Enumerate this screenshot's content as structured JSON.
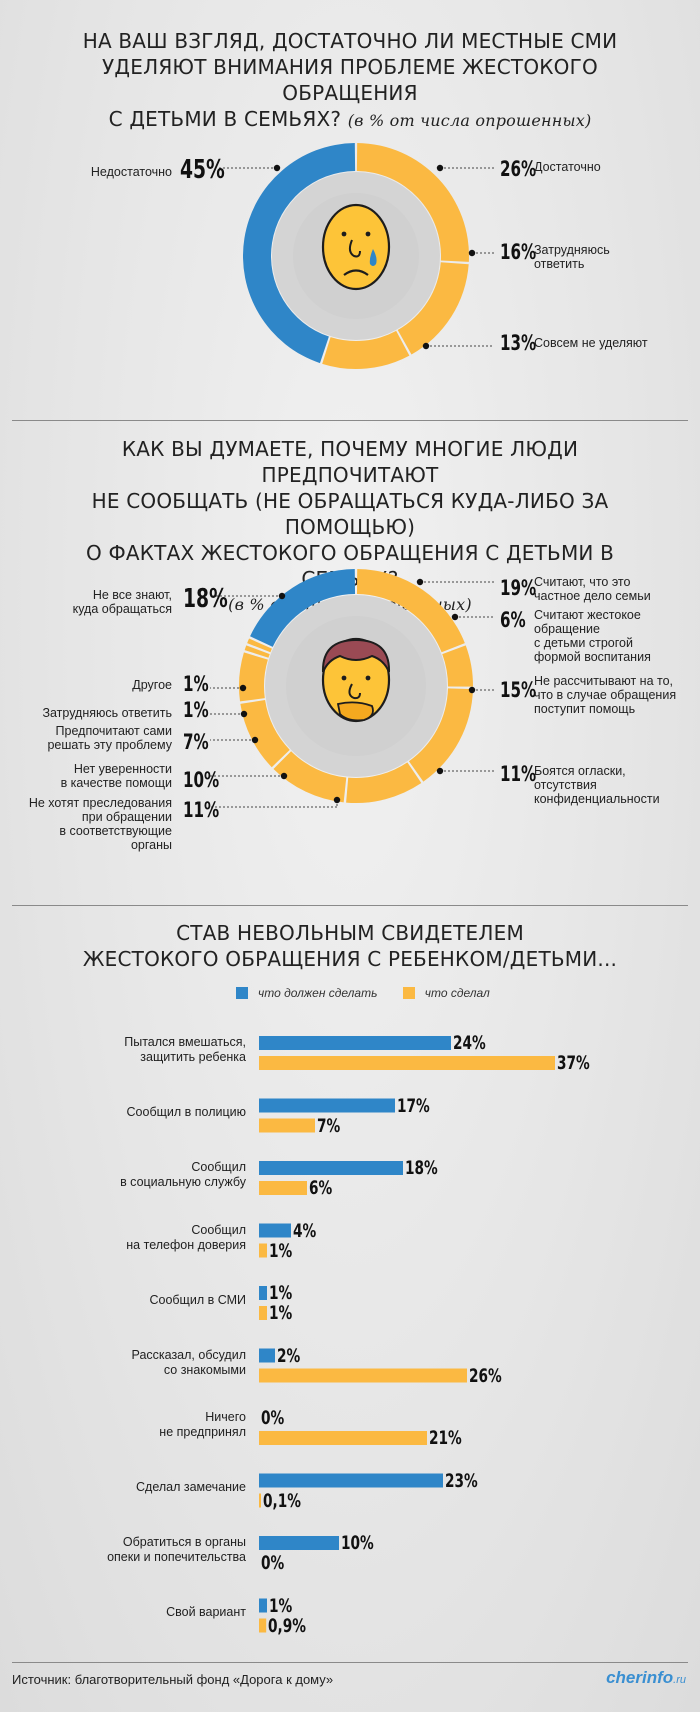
{
  "colors": {
    "blue": "#2f86c8",
    "yellow": "#fbb942",
    "track": "#d4d4d4",
    "face": "#fdc438"
  },
  "q1": {
    "title_l1": "НА ВАШ ВЗГЛЯД, ДОСТАТОЧНО ЛИ МЕСТНЫЕ СМИ",
    "title_l2": "УДЕЛЯЮТ ВНИМАНИЯ ПРОБЛЕМЕ ЖЕСТОКОГО ОБРАЩЕНИЯ",
    "title_l3": "С ДЕТЬМИ В СЕМЬЯХ?",
    "subtitle": "(в % от числа опрошенных)"
  },
  "q2": {
    "title_l1": "КАК ВЫ ДУМАЕТЕ, ПОЧЕМУ МНОГИЕ ЛЮДИ ПРЕДПОЧИТАЮТ",
    "title_l2": "НЕ СООБЩАТЬ (НЕ ОБРАЩАТЬСЯ КУДА-ЛИБО ЗА ПОМОЩЬЮ)",
    "title_l3": "О ФАКТАХ ЖЕСТОКОГО ОБРАЩЕНИЯ С ДЕТЬМИ В СЕМЬЯХ?",
    "subtitle": "(в % от числа опрошенных)"
  },
  "q3": {
    "title_l1": "СТАВ НЕВОЛЬНЫМ СВИДЕТЕЛЕМ",
    "title_l2": "ЖЕСТОКОГО ОБРАЩЕНИЯ С РЕБЕНКОМ/ДЕТЬМИ...",
    "legend_should": "что должен сделать",
    "legend_did": "что сделал"
  },
  "footer": {
    "source": "Источник: благотворительный фонд «Дорога к дому»",
    "logo": "cherinfo",
    "logo_suffix": ".ru"
  },
  "chart_data": [
    {
      "type": "pie",
      "series": [
        {
          "label": "Недостаточно",
          "value": 45,
          "pct_text": "45%",
          "color": "#2f86c8"
        },
        {
          "label": "Достаточно",
          "value": 26,
          "pct_text": "26%",
          "color": "#fbb942"
        },
        {
          "label": "Затрудняюсь\nответить",
          "value": 16,
          "pct_text": "16%",
          "color": "#fbb942"
        },
        {
          "label": "Совсем не уделяют",
          "value": 13,
          "pct_text": "13%",
          "color": "#fbb942"
        }
      ]
    },
    {
      "type": "pie",
      "series": [
        {
          "label": "Считают, что это\nчастное дело семьи",
          "value": 19,
          "pct_text": "19%",
          "color": "#fbb942"
        },
        {
          "label": "Считают жестокое\nобращение\nс детьми строгой\nформой воспитания",
          "value": 6,
          "pct_text": "6%",
          "color": "#fbb942"
        },
        {
          "label": "Не рассчитывают на то,\nчто в случае обращения\nпоступит помощь",
          "value": 15,
          "pct_text": "15%",
          "color": "#fbb942"
        },
        {
          "label": "Боятся огласки,\nотсутствия\nконфиденциальности",
          "value": 11,
          "pct_text": "11%",
          "color": "#fbb942"
        },
        {
          "label": "Не хотят преследования\nпри обращении\nв соответствующие\nорганы",
          "value": 11,
          "pct_text": "11%",
          "color": "#fbb942"
        },
        {
          "label": "Нет уверенности\nв качестве помощи",
          "value": 10,
          "pct_text": "10%",
          "color": "#fbb942"
        },
        {
          "label": "Предпочитают сами\nрешать эту проблему",
          "value": 7,
          "pct_text": "7%",
          "color": "#fbb942"
        },
        {
          "label": "Затрудняюсь ответить",
          "value": 1,
          "pct_text": "1%",
          "color": "#fbb942"
        },
        {
          "label": "Другое",
          "value": 1,
          "pct_text": "1%",
          "color": "#fbb942"
        },
        {
          "label": "Не все знают,\nкуда обращаться",
          "value": 18,
          "pct_text": "18%",
          "color": "#2f86c8"
        }
      ]
    },
    {
      "type": "bar",
      "categories": [
        "Пытался вмешаться,\nзащитить ребенка",
        "Сообщил в полицию",
        "Сообщил\nв социальную службу",
        "Сообщил\nна телефон доверия",
        "Сообщил в СМИ",
        "Рассказал, обсудил\nсо знакомыми",
        "Ничего\nне предпринял",
        "Сделал замечание",
        "Обратиться в органы\nопеки и попечительства",
        "Свой вариант"
      ],
      "series": [
        {
          "name": "что должен сделать",
          "color": "#2f86c8",
          "values": [
            24,
            17,
            18,
            4,
            1,
            2,
            0,
            23,
            10,
            1
          ],
          "labels": [
            "24%",
            "17%",
            "18%",
            "4%",
            "1%",
            "2%",
            "0%",
            "23%",
            "10%",
            "1%"
          ]
        },
        {
          "name": "что сделал",
          "color": "#fbb942",
          "values": [
            37,
            7,
            6,
            1,
            1,
            26,
            21,
            0.1,
            0,
            0.9
          ],
          "labels": [
            "37%",
            "7%",
            "6%",
            "1%",
            "1%",
            "26%",
            "21%",
            "0,1%",
            "0%",
            "0,9%"
          ]
        }
      ]
    }
  ]
}
